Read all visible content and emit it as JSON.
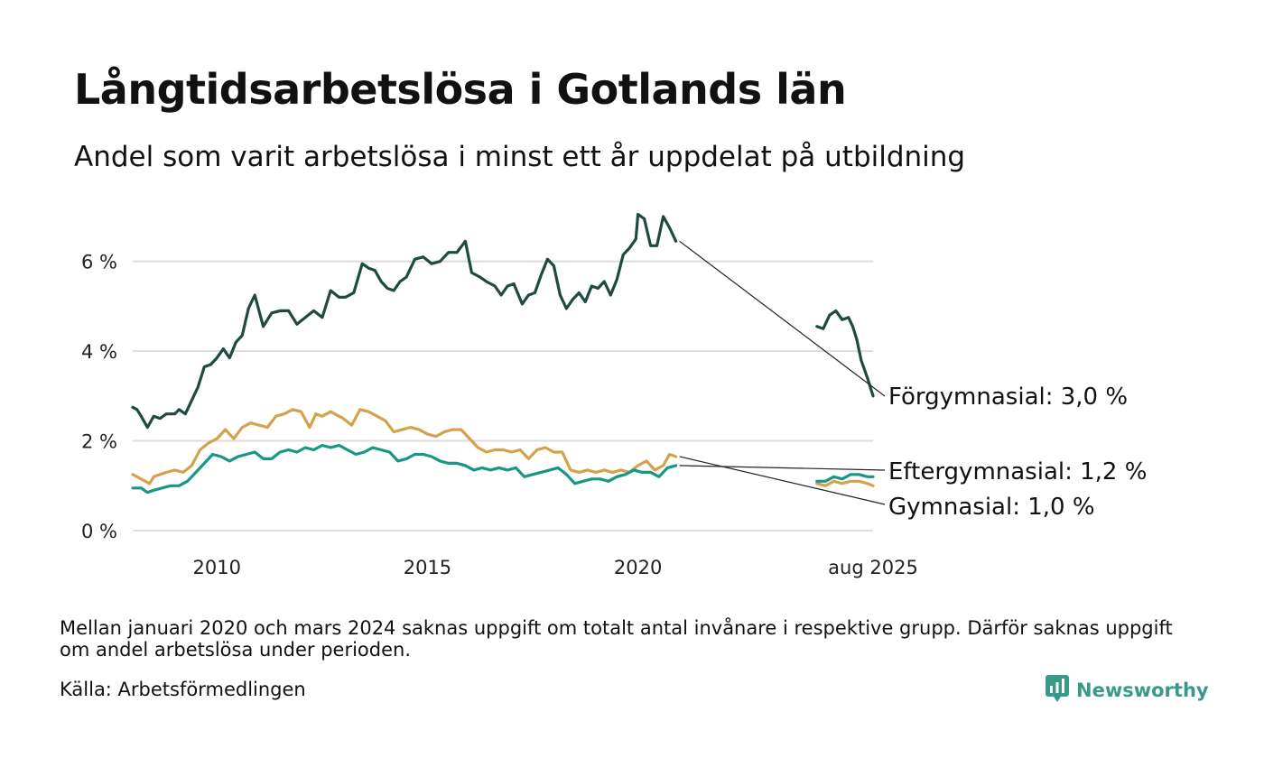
{
  "title": "Långtidsarbetslösa i Gotlands län",
  "subtitle": "Andel som varit arbetslösa i minst ett år uppdelat på utbildning",
  "note": "Mellan januari 2020 och mars 2024 saknas uppgift om totalt antal invånare i respektive grupp. Därför saknas uppgift om andel arbetslösa under perioden.",
  "source": "Källa: Arbetsförmedlingen",
  "brand": {
    "name": "Newsworthy",
    "icon": "newsworthy-chart-logo-icon",
    "color": "#3a9a8a"
  },
  "chart_data": {
    "type": "line",
    "x_tick_labels": [
      "2010",
      "2015",
      "2020",
      "aug 2025"
    ],
    "x_ticks": [
      2010.0,
      2015.0,
      2020.0,
      2025.583
    ],
    "xlim": [
      2008.0,
      2025.583
    ],
    "y_tick_labels": [
      "0 %",
      "2 %",
      "4 %",
      "6 %"
    ],
    "y_ticks": [
      0,
      2,
      4,
      6
    ],
    "ylim": [
      0,
      7.2
    ],
    "grid": true,
    "legend": "end-labels",
    "series": [
      {
        "name": "Förgymnasial",
        "end_label": "Förgymnasial: 3,0 %",
        "color": "#1f4a42",
        "x": [
          2008.0,
          2008.1,
          2008.2,
          2008.35,
          2008.5,
          2008.65,
          2008.8,
          2009.0,
          2009.1,
          2009.25,
          2009.4,
          2009.55,
          2009.7,
          2009.85,
          2010.0,
          2010.15,
          2010.3,
          2010.45,
          2010.6,
          2010.75,
          2010.9,
          2011.1,
          2011.3,
          2011.5,
          2011.7,
          2011.9,
          2012.1,
          2012.3,
          2012.5,
          2012.7,
          2012.9,
          2013.05,
          2013.25,
          2013.45,
          2013.6,
          2013.75,
          2013.9,
          2014.05,
          2014.2,
          2014.35,
          2014.5,
          2014.7,
          2014.9,
          2015.1,
          2015.3,
          2015.5,
          2015.7,
          2015.9,
          2016.05,
          2016.25,
          2016.4,
          2016.6,
          2016.75,
          2016.9,
          2017.05,
          2017.25,
          2017.4,
          2017.55,
          2017.7,
          2017.85,
          2018.0,
          2018.15,
          2018.3,
          2018.45,
          2018.6,
          2018.75,
          2018.9,
          2019.05,
          2019.2,
          2019.35,
          2019.5,
          2019.65,
          2019.8,
          2019.95,
          2020.0,
          2020.15,
          2020.3,
          2020.45,
          2020.6,
          2020.75,
          2020.9
        ],
        "values": [
          2.75,
          2.7,
          2.55,
          2.3,
          2.55,
          2.5,
          2.6,
          2.6,
          2.7,
          2.6,
          2.9,
          3.2,
          3.65,
          3.7,
          3.85,
          4.05,
          3.85,
          4.2,
          4.35,
          4.95,
          5.25,
          4.55,
          4.85,
          4.9,
          4.9,
          4.6,
          4.75,
          4.9,
          4.75,
          5.35,
          5.2,
          5.2,
          5.3,
          5.95,
          5.85,
          5.8,
          5.55,
          5.4,
          5.35,
          5.55,
          5.65,
          6.05,
          6.1,
          5.95,
          6.0,
          6.2,
          6.2,
          6.45,
          5.75,
          5.65,
          5.55,
          5.45,
          5.25,
          5.45,
          5.5,
          5.05,
          5.25,
          5.3,
          5.7,
          6.05,
          5.9,
          5.25,
          4.95,
          5.15,
          5.3,
          5.1,
          5.45,
          5.4,
          5.55,
          5.25,
          5.6,
          6.15,
          6.3,
          6.5,
          7.05,
          6.95,
          6.35,
          6.35,
          7.0,
          6.75,
          6.45
        ]
      },
      {
        "name": "Förgymnasial",
        "color": "#1f4a42",
        "x": [
          2024.25,
          2024.4,
          2024.55,
          2024.7,
          2024.85,
          2025.0,
          2025.1,
          2025.2,
          2025.3,
          2025.45,
          2025.583
        ],
        "values": [
          4.55,
          4.5,
          4.8,
          4.9,
          4.7,
          4.75,
          4.55,
          4.25,
          3.8,
          3.4,
          3.0
        ]
      },
      {
        "name": "Gymnasial",
        "end_label": "Gymnasial: 1,0 %",
        "color": "#d4a24c",
        "x": [
          2008.0,
          2008.2,
          2008.4,
          2008.5,
          2008.65,
          2008.8,
          2009.0,
          2009.2,
          2009.4,
          2009.6,
          2009.8,
          2010.0,
          2010.2,
          2010.4,
          2010.6,
          2010.8,
          2011.0,
          2011.2,
          2011.4,
          2011.6,
          2011.8,
          2012.0,
          2012.2,
          2012.35,
          2012.5,
          2012.7,
          2012.9,
          2013.0,
          2013.2,
          2013.4,
          2013.6,
          2013.8,
          2014.0,
          2014.2,
          2014.4,
          2014.6,
          2014.8,
          2015.0,
          2015.2,
          2015.4,
          2015.6,
          2015.8,
          2016.0,
          2016.2,
          2016.4,
          2016.6,
          2016.8,
          2017.0,
          2017.2,
          2017.4,
          2017.6,
          2017.8,
          2018.0,
          2018.2,
          2018.4,
          2018.6,
          2018.8,
          2019.0,
          2019.2,
          2019.4,
          2019.6,
          2019.8,
          2020.0,
          2020.2,
          2020.4,
          2020.6,
          2020.75,
          2020.9
        ],
        "values": [
          1.25,
          1.15,
          1.05,
          1.2,
          1.25,
          1.3,
          1.35,
          1.3,
          1.45,
          1.8,
          1.95,
          2.05,
          2.25,
          2.05,
          2.3,
          2.4,
          2.35,
          2.3,
          2.55,
          2.6,
          2.7,
          2.65,
          2.3,
          2.6,
          2.55,
          2.65,
          2.55,
          2.5,
          2.35,
          2.7,
          2.65,
          2.55,
          2.45,
          2.2,
          2.25,
          2.3,
          2.25,
          2.15,
          2.1,
          2.2,
          2.25,
          2.25,
          2.05,
          1.85,
          1.75,
          1.8,
          1.8,
          1.75,
          1.8,
          1.6,
          1.8,
          1.85,
          1.75,
          1.75,
          1.35,
          1.3,
          1.35,
          1.3,
          1.35,
          1.3,
          1.35,
          1.3,
          1.45,
          1.55,
          1.35,
          1.45,
          1.7,
          1.65
        ]
      },
      {
        "name": "Gymnasial",
        "color": "#d4a24c",
        "x": [
          2024.25,
          2024.45,
          2024.65,
          2024.85,
          2025.05,
          2025.25,
          2025.45,
          2025.583
        ],
        "values": [
          1.05,
          1.0,
          1.1,
          1.05,
          1.1,
          1.1,
          1.05,
          1.0
        ]
      },
      {
        "name": "Eftergymnasial",
        "end_label": "Eftergymnasial: 1,2 %",
        "color": "#1a9685",
        "x": [
          2008.0,
          2008.2,
          2008.35,
          2008.5,
          2008.7,
          2008.9,
          2009.1,
          2009.3,
          2009.5,
          2009.7,
          2009.9,
          2010.1,
          2010.3,
          2010.5,
          2010.7,
          2010.9,
          2011.1,
          2011.3,
          2011.5,
          2011.7,
          2011.9,
          2012.1,
          2012.3,
          2012.5,
          2012.7,
          2012.9,
          2013.1,
          2013.3,
          2013.5,
          2013.7,
          2013.9,
          2014.1,
          2014.3,
          2014.5,
          2014.7,
          2014.9,
          2015.1,
          2015.3,
          2015.5,
          2015.7,
          2015.9,
          2016.1,
          2016.3,
          2016.5,
          2016.7,
          2016.9,
          2017.1,
          2017.3,
          2017.5,
          2017.7,
          2017.9,
          2018.1,
          2018.3,
          2018.5,
          2018.7,
          2018.9,
          2019.1,
          2019.3,
          2019.5,
          2019.7,
          2019.9,
          2020.1,
          2020.3,
          2020.5,
          2020.7,
          2020.9
        ],
        "values": [
          0.95,
          0.95,
          0.85,
          0.9,
          0.95,
          1.0,
          1.0,
          1.1,
          1.3,
          1.5,
          1.7,
          1.65,
          1.55,
          1.65,
          1.7,
          1.75,
          1.6,
          1.6,
          1.75,
          1.8,
          1.75,
          1.85,
          1.8,
          1.9,
          1.85,
          1.9,
          1.8,
          1.7,
          1.75,
          1.85,
          1.8,
          1.75,
          1.55,
          1.6,
          1.7,
          1.7,
          1.65,
          1.55,
          1.5,
          1.5,
          1.45,
          1.35,
          1.4,
          1.35,
          1.4,
          1.35,
          1.4,
          1.2,
          1.25,
          1.3,
          1.35,
          1.4,
          1.25,
          1.05,
          1.1,
          1.15,
          1.15,
          1.1,
          1.2,
          1.25,
          1.35,
          1.3,
          1.3,
          1.2,
          1.4,
          1.45
        ]
      },
      {
        "name": "Eftergymnasial",
        "color": "#1a9685",
        "x": [
          2024.25,
          2024.45,
          2024.65,
          2024.85,
          2025.05,
          2025.25,
          2025.45,
          2025.583
        ],
        "values": [
          1.1,
          1.1,
          1.2,
          1.15,
          1.25,
          1.25,
          1.2,
          1.2
        ]
      }
    ]
  }
}
